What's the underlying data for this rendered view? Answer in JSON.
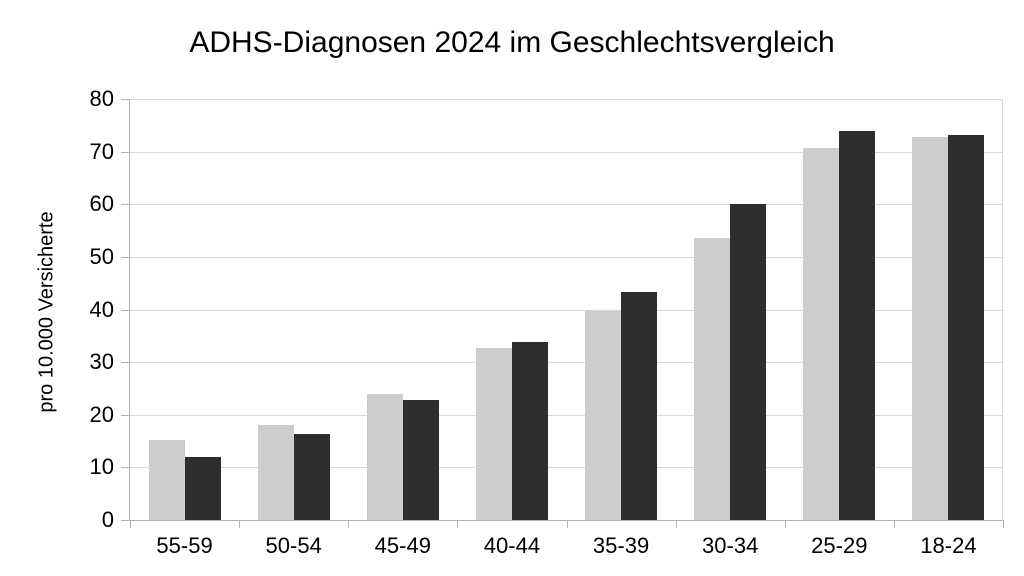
{
  "chart_data": {
    "type": "bar",
    "title": "ADHS-Diagnosen 2024 im Geschlechtsvergleich",
    "ylabel": "pro 10.000 Versicherte",
    "xlabel": "",
    "categories": [
      "55-59",
      "50-54",
      "45-49",
      "40-44",
      "35-39",
      "30-34",
      "25-29",
      "18-24"
    ],
    "series": [
      {
        "name": "series-light-gray",
        "color": "#cdcdcd",
        "values": [
          15.2,
          18.0,
          24.0,
          32.7,
          39.8,
          53.5,
          70.7,
          72.8
        ]
      },
      {
        "name": "series-dark-gray",
        "color": "#2e2e2e",
        "values": [
          12.0,
          16.3,
          22.8,
          33.8,
          43.4,
          60.1,
          74.0,
          73.1
        ]
      }
    ],
    "ylim": [
      0,
      80
    ],
    "ytick_step": 10,
    "yticks": [
      0,
      10,
      20,
      30,
      40,
      50,
      60,
      70,
      80
    ],
    "grid": true,
    "legend": "none",
    "colors": {
      "background": "#ffffff",
      "text": "#000000",
      "gridline": "#d9d9d9",
      "axis": "#b3b3b3"
    }
  }
}
